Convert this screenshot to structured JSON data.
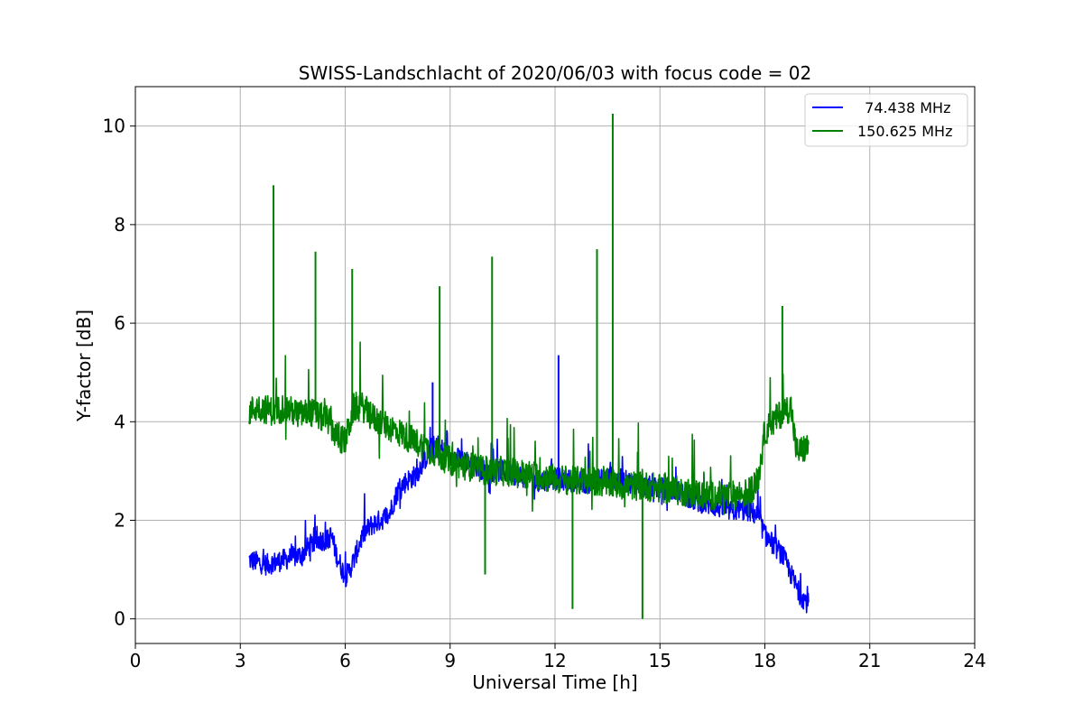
{
  "chart_data": {
    "type": "line",
    "title": "SWISS-Landschlacht of 2020/06/03 with focus code = 02",
    "xlabel": "Universal Time [h]",
    "ylabel": "Y-factor [dB]",
    "xlim": [
      0,
      24
    ],
    "ylim": [
      -0.5,
      10.8
    ],
    "xticks": [
      0,
      3,
      6,
      9,
      12,
      15,
      18,
      21,
      24
    ],
    "yticks": [
      0,
      2,
      4,
      6,
      8,
      10
    ],
    "grid": true,
    "legend_position": "top-right",
    "series": [
      {
        "name": "  74.438 MHz",
        "color": "#0000ff",
        "x": [
          3.25,
          3.5,
          3.75,
          4.0,
          4.25,
          4.5,
          4.75,
          5.0,
          5.25,
          5.5,
          5.6,
          5.75,
          6.0,
          6.1,
          6.25,
          6.5,
          6.75,
          7.0,
          7.25,
          7.5,
          7.75,
          8.0,
          8.25,
          8.5,
          8.75,
          9.0,
          9.5,
          10.0,
          10.5,
          11.0,
          11.5,
          12.0,
          12.5,
          13.0,
          13.5,
          14.0,
          14.5,
          15.0,
          15.5,
          16.0,
          16.5,
          17.0,
          17.5,
          17.8,
          18.0,
          18.25,
          18.5,
          18.75,
          19.0,
          19.25
        ],
        "values": [
          1.2,
          1.15,
          1.1,
          1.15,
          1.2,
          1.25,
          1.3,
          1.5,
          1.6,
          1.6,
          1.7,
          1.3,
          0.85,
          0.95,
          1.2,
          1.7,
          1.9,
          2.0,
          2.1,
          2.6,
          2.8,
          2.9,
          3.2,
          3.5,
          3.45,
          3.3,
          3.2,
          3.0,
          3.0,
          2.9,
          2.8,
          2.85,
          2.8,
          2.75,
          2.9,
          2.8,
          2.7,
          2.65,
          2.6,
          2.4,
          2.3,
          2.2,
          2.2,
          2.1,
          1.7,
          1.5,
          1.3,
          0.9,
          0.5,
          0.3
        ]
      },
      {
        "name": "150.625 MHz",
        "color": "#008000",
        "x": [
          3.25,
          3.5,
          3.75,
          4.0,
          4.25,
          4.5,
          4.75,
          5.0,
          5.25,
          5.5,
          5.75,
          6.0,
          6.25,
          6.5,
          6.75,
          7.0,
          7.25,
          7.5,
          7.75,
          8.0,
          8.25,
          8.5,
          8.75,
          9.0,
          9.5,
          10.0,
          10.5,
          11.0,
          11.5,
          12.0,
          12.5,
          13.0,
          13.5,
          14.0,
          14.5,
          15.0,
          15.5,
          16.0,
          16.5,
          17.0,
          17.5,
          17.8,
          18.0,
          18.25,
          18.5,
          18.75,
          18.9,
          19.0,
          19.25
        ],
        "values": [
          4.2,
          4.3,
          4.25,
          4.2,
          4.3,
          4.2,
          4.15,
          4.2,
          4.1,
          4.05,
          3.7,
          3.6,
          4.3,
          4.3,
          4.1,
          4.0,
          3.9,
          3.8,
          3.7,
          3.6,
          3.5,
          3.4,
          3.3,
          3.2,
          3.1,
          3.0,
          3.0,
          2.95,
          2.9,
          2.85,
          2.8,
          2.8,
          2.75,
          2.7,
          2.7,
          2.65,
          2.6,
          2.55,
          2.5,
          2.5,
          2.55,
          2.8,
          3.8,
          4.0,
          4.2,
          4.3,
          3.4,
          3.4,
          3.5
        ]
      }
    ],
    "annotations": [
      {
        "series": 1,
        "x": 3.95,
        "y": 8.8
      },
      {
        "series": 1,
        "x": 5.15,
        "y": 7.45
      },
      {
        "series": 1,
        "x": 6.2,
        "y": 7.1
      },
      {
        "series": 1,
        "x": 8.7,
        "y": 6.75
      },
      {
        "series": 1,
        "x": 10.2,
        "y": 7.35
      },
      {
        "series": 1,
        "x": 13.2,
        "y": 7.5
      },
      {
        "series": 1,
        "x": 13.65,
        "y": 10.25
      },
      {
        "series": 1,
        "x": 18.5,
        "y": 6.35
      },
      {
        "series": 1,
        "x": 10.0,
        "y": 0.9
      },
      {
        "series": 1,
        "x": 12.5,
        "y": 0.2
      },
      {
        "series": 1,
        "x": 14.5,
        "y": 0.0
      },
      {
        "series": 0,
        "x": 12.1,
        "y": 5.35
      },
      {
        "series": 0,
        "x": 8.5,
        "y": 4.8
      }
    ]
  }
}
